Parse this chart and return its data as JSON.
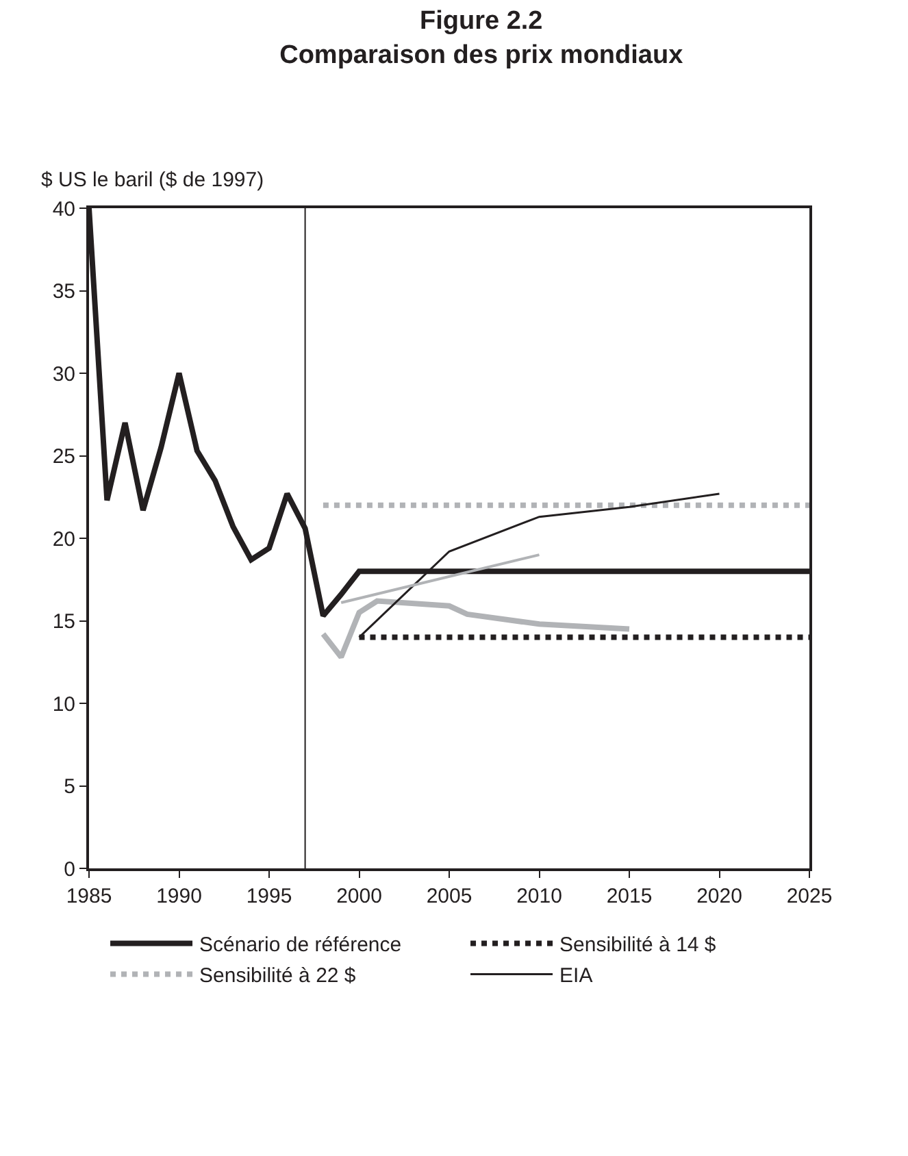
{
  "chart_data": {
    "type": "line",
    "title": "Figure 2.2",
    "subtitle": "Comparaison des prix mondiaux",
    "ylabel": "$ US le baril ($ de 1997)",
    "xlim": [
      1985,
      2025
    ],
    "xticks": [
      1985,
      1990,
      1995,
      2000,
      2005,
      2010,
      2015,
      2020,
      2025
    ],
    "ylim": [
      0,
      40
    ],
    "yticks": [
      0,
      5,
      10,
      15,
      20,
      25,
      30,
      35,
      40
    ],
    "legend": "bottom",
    "series": [
      {
        "name": "Scénario de référence",
        "color": "#231f20",
        "line_style": "solid",
        "x": [
          1985,
          1986,
          1987,
          1988,
          1989,
          1990,
          1991,
          1992,
          1993,
          1994,
          1995,
          1996,
          1997,
          1998,
          1999,
          2000,
          2025
        ],
        "values": [
          40,
          22.3,
          27,
          21.7,
          25.5,
          30,
          25.3,
          23.5,
          20.7,
          18.7,
          19.4,
          22.7,
          20.6,
          15.3,
          16.6,
          18,
          18
        ]
      },
      {
        "name": "Sensibilité à 14 $",
        "color": "#231f20",
        "line_style": "dotted",
        "x": [
          2000,
          2025
        ],
        "values": [
          14,
          14
        ]
      },
      {
        "name": "Sensibilité à 22 $",
        "color": "#b1b3b6",
        "line_style": "dotted",
        "x": [
          1998,
          2025
        ],
        "values": [
          22,
          22
        ]
      },
      {
        "color": "#b1b3b6",
        "line_style": "solid",
        "x": [
          1998,
          1999,
          2000,
          2001,
          2005,
          2006,
          2010,
          2015
        ],
        "values": [
          14.2,
          12.8,
          15.5,
          16.2,
          15.9,
          15.4,
          14.8,
          14.5
        ]
      },
      {
        "name": "EIA",
        "color": "#231f20",
        "line_style": "solid",
        "x": [
          2000,
          2005,
          2010,
          2015,
          2020
        ],
        "values": [
          14,
          19.2,
          21.3,
          21.9,
          22.7
        ]
      },
      {
        "color": "#b1b3b6",
        "line_style": "solid",
        "x": [
          1999,
          2010
        ],
        "values": [
          16.1,
          19
        ]
      }
    ],
    "ref_lines": [
      {
        "axis": "x",
        "value": 1997,
        "color": "#231f20"
      }
    ]
  }
}
